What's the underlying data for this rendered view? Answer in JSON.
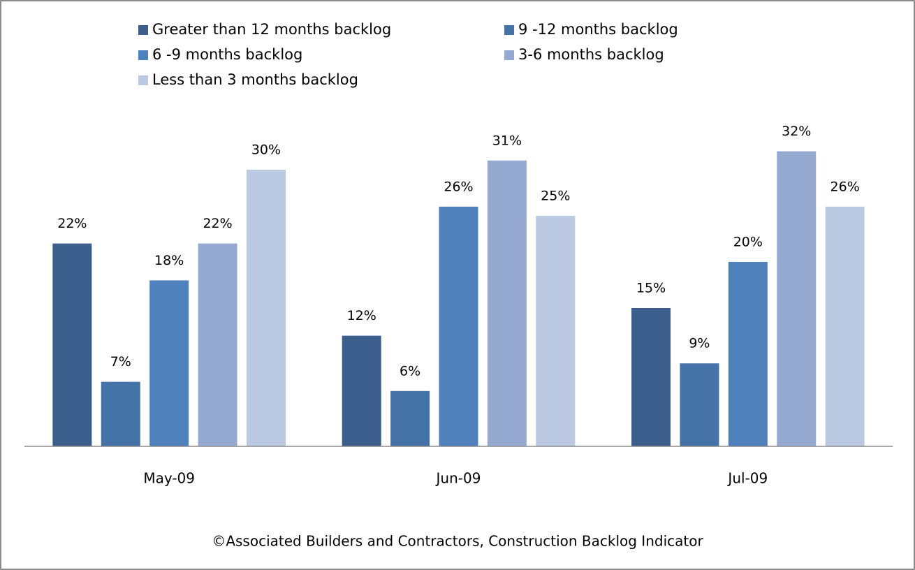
{
  "chart_data": {
    "type": "bar",
    "categories": [
      "May-09",
      "Jun-09",
      "Jul-09"
    ],
    "series": [
      {
        "name": "Greater than 12 months backlog",
        "color": "#3b5e8c",
        "values": [
          22,
          12,
          15
        ],
        "value_labels": [
          "22%",
          "12%",
          "15%"
        ]
      },
      {
        "name": "9 -12 months backlog",
        "color": "#4573a7",
        "values": [
          7,
          6,
          9
        ],
        "value_labels": [
          "7%",
          "6%",
          "9%"
        ]
      },
      {
        "name": "6 -9 months backlog",
        "color": "#4f81bd",
        "values": [
          18,
          26,
          20
        ],
        "value_labels": [
          "18%",
          "26%",
          "20%"
        ]
      },
      {
        "name": "3-6 months backlog",
        "color": "#95a9d1",
        "values": [
          22,
          31,
          32
        ],
        "value_labels": [
          "22%",
          "31%",
          "32%"
        ]
      },
      {
        "name": "Less than 3 months backlog",
        "color": "#bcc9e2",
        "values": [
          30,
          25,
          26
        ],
        "value_labels": [
          "30%",
          "25%",
          "26%"
        ]
      }
    ],
    "ylim": [
      0,
      35
    ],
    "legend": "top",
    "source": "©Associated Builders and Contractors, Construction Backlog Indicator"
  }
}
